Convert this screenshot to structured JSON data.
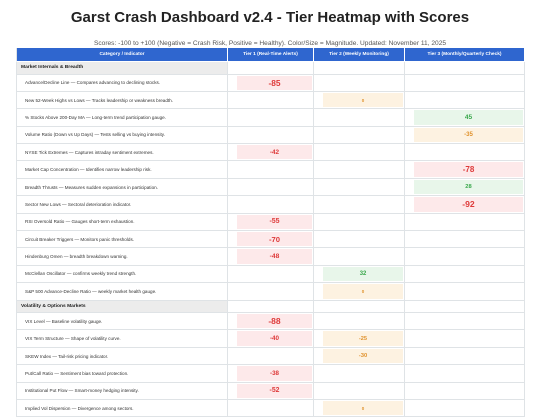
{
  "title": "Garst Crash Dashboard v2.4 - Tier Heatmap with Scores",
  "subtitle": "Scores: -100 to +100 (Negative = Crash Risk, Positive = Healthy). Color/Size = Magnitude. Updated: November 11, 2025",
  "columns": [
    "Category / Indicator",
    "Tier 1 (Real-Time Alerts)",
    "Tier 2 (Weekly Monitoring)",
    "Tier 3 (Monthly/Quarterly Check)"
  ],
  "colors": {
    "header": "#2f66cf",
    "crash": "#de3a3a",
    "warn": "#e0922d",
    "healthy": "#3aa84c"
  },
  "rows": [
    {
      "type": "section",
      "label": "Market Internals & Breadth"
    },
    {
      "type": "row",
      "label": "Advance/Decline Line — Compares advancing to declining stocks.",
      "t1": "-85",
      "t2": "",
      "t3": ""
    },
    {
      "type": "row",
      "label": "New 52-Week Highs vs Lows — Tracks leadership or weakness breadth.",
      "t1": "",
      "t2": "0",
      "t3": ""
    },
    {
      "type": "row",
      "label": "% Stocks Above 200-Day MA — Long-term trend participation gauge.",
      "t1": "",
      "t2": "",
      "t3": "45"
    },
    {
      "type": "row",
      "label": "Volume Ratio (Down vs Up Days) — Tests selling vs buying intensity.",
      "t1": "",
      "t2": "",
      "t3": "-35"
    },
    {
      "type": "row",
      "label": "NYSE Tick Extremes — Captures intraday sentiment extremes.",
      "t1": "-42",
      "t2": "",
      "t3": ""
    },
    {
      "type": "row",
      "label": "Market Cap Concentration — Identifies narrow leadership risk.",
      "t1": "",
      "t2": "",
      "t3": "-78"
    },
    {
      "type": "row",
      "label": "Breadth Thrusts — Measures sudden expansions in participation.",
      "t1": "",
      "t2": "",
      "t3": "28"
    },
    {
      "type": "row",
      "label": "Sector New Lows — Sectoral deterioration indicator.",
      "t1": "",
      "t2": "",
      "t3": "-92"
    },
    {
      "type": "row",
      "label": "RSI Oversold Ratio — Gauges short-term exhaustion.",
      "t1": "-55",
      "t2": "",
      "t3": ""
    },
    {
      "type": "row",
      "label": "Circuit Breaker Triggers — Monitors panic thresholds.",
      "t1": "-70",
      "t2": "",
      "t3": ""
    },
    {
      "type": "row",
      "label": "Hindenburg Omen — breadth breakdown warning.",
      "t1": "-48",
      "t2": "",
      "t3": ""
    },
    {
      "type": "row",
      "label": "McClellan Oscillator — confirms weekly trend strength.",
      "t1": "",
      "t2": "32",
      "t3": ""
    },
    {
      "type": "row",
      "label": "S&P 500 Advance-Decline Ratio — weekly market health gauge.",
      "t1": "",
      "t2": "0",
      "t3": ""
    },
    {
      "type": "section",
      "label": "Volatility & Options Markets"
    },
    {
      "type": "row",
      "label": "VIX Level — Baseline volatility gauge.",
      "t1": "-88",
      "t2": "",
      "t3": ""
    },
    {
      "type": "row",
      "label": "VIX Term Structure — Shape of volatility curve.",
      "t1": "-40",
      "t2": "-25",
      "t3": ""
    },
    {
      "type": "row",
      "label": "SKEW Index — Tail-risk pricing indicator.",
      "t1": "",
      "t2": "-30",
      "t3": ""
    },
    {
      "type": "row",
      "label": "Put/Call Ratio — Sentiment bias toward protection.",
      "t1": "-38",
      "t2": "",
      "t3": ""
    },
    {
      "type": "row",
      "label": "Institutional Put Flow — Smart-money hedging intensity.",
      "t1": "-52",
      "t2": "",
      "t3": ""
    },
    {
      "type": "row",
      "label": "Implied Vol Dispersion — Divergence among sectors.",
      "t1": "",
      "t2": "0",
      "t3": ""
    }
  ]
}
